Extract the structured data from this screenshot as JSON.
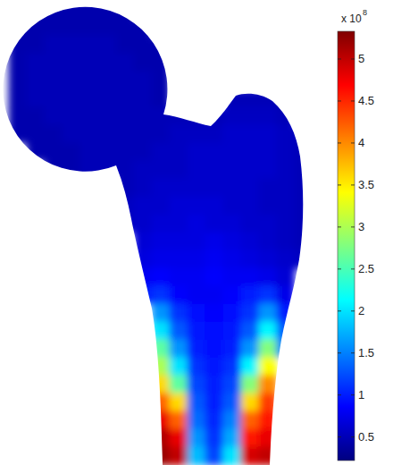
{
  "chart_data": {
    "type": "heatmap",
    "cells": [
      [
        null,
        0.45,
        0.45,
        0.45,
        0.45,
        0.45,
        0.45,
        null,
        null,
        null,
        null,
        null,
        null,
        null,
        null,
        null,
        null
      ],
      [
        0.45,
        0.45,
        0.45,
        0.45,
        0.45,
        0.45,
        0.45,
        0.45,
        null,
        null,
        null,
        null,
        null,
        null,
        null,
        null,
        null
      ],
      [
        0.45,
        0.45,
        0.5,
        0.5,
        0.5,
        0.5,
        0.45,
        0.45,
        0.45,
        null,
        null,
        null,
        null,
        null,
        null,
        null,
        null
      ],
      [
        0.45,
        0.5,
        0.5,
        0.5,
        0.5,
        0.5,
        0.5,
        0.45,
        0.45,
        null,
        null,
        null,
        null,
        null,
        null,
        null,
        null
      ],
      [
        0.45,
        0.5,
        0.5,
        0.5,
        0.5,
        0.5,
        0.5,
        0.5,
        0.45,
        null,
        null,
        null,
        null,
        null,
        null,
        null,
        null
      ],
      [
        0.45,
        0.5,
        0.5,
        0.5,
        0.5,
        0.5,
        0.5,
        0.5,
        0.45,
        null,
        null,
        null,
        0.5,
        0.5,
        0.5,
        0.45,
        null
      ],
      [
        0.45,
        0.45,
        0.5,
        0.5,
        0.5,
        0.5,
        0.5,
        0.5,
        0.5,
        0.5,
        0.5,
        0.5,
        0.55,
        0.55,
        0.55,
        0.5,
        null
      ],
      [
        0.45,
        0.45,
        0.45,
        0.5,
        0.5,
        0.5,
        0.5,
        0.5,
        0.5,
        0.55,
        0.55,
        0.55,
        0.6,
        0.6,
        0.6,
        0.55,
        0.5
      ],
      [
        null,
        0.45,
        0.45,
        0.45,
        0.5,
        0.5,
        0.5,
        0.5,
        0.55,
        0.55,
        0.6,
        0.6,
        0.6,
        0.6,
        0.6,
        0.55,
        0.5
      ],
      [
        null,
        null,
        0.45,
        0.45,
        0.5,
        0.5,
        0.5,
        0.55,
        0.55,
        0.55,
        0.6,
        0.6,
        0.6,
        0.6,
        0.6,
        0.55,
        0.5
      ],
      [
        null,
        null,
        null,
        null,
        null,
        null,
        0.5,
        0.55,
        0.6,
        0.6,
        0.6,
        0.6,
        0.6,
        0.6,
        0.55,
        0.55,
        0.5
      ],
      [
        null,
        null,
        null,
        null,
        null,
        null,
        0.55,
        0.6,
        0.6,
        0.65,
        0.65,
        0.65,
        0.6,
        0.6,
        0.55,
        0.55,
        0.5
      ],
      [
        null,
        null,
        null,
        null,
        null,
        null,
        0.55,
        0.6,
        0.65,
        0.65,
        0.7,
        0.65,
        0.65,
        0.6,
        0.6,
        0.55,
        0.5
      ],
      [
        null,
        null,
        null,
        null,
        null,
        null,
        null,
        0.65,
        0.7,
        0.7,
        0.7,
        0.75,
        0.7,
        0.65,
        0.6,
        0.55,
        0.5
      ],
      [
        null,
        null,
        null,
        null,
        null,
        null,
        null,
        0.7,
        0.75,
        0.75,
        0.75,
        0.8,
        0.75,
        0.7,
        0.65,
        0.6,
        0.55
      ],
      [
        null,
        null,
        null,
        null,
        null,
        null,
        null,
        0.8,
        0.85,
        0.8,
        0.8,
        0.85,
        0.8,
        0.8,
        0.75,
        0.65,
        null
      ],
      [
        null,
        null,
        null,
        null,
        null,
        null,
        null,
        1.0,
        1.1,
        0.85,
        0.8,
        0.8,
        0.85,
        1.0,
        1.1,
        0.75,
        null
      ],
      [
        null,
        null,
        null,
        null,
        null,
        null,
        null,
        null,
        1.6,
        1.1,
        0.9,
        0.85,
        0.9,
        1.1,
        1.6,
        1.0,
        null
      ],
      [
        null,
        null,
        null,
        null,
        null,
        null,
        null,
        null,
        2.0,
        1.3,
        0.95,
        0.9,
        0.95,
        1.3,
        2.1,
        1.3,
        null
      ],
      [
        null,
        null,
        null,
        null,
        null,
        null,
        null,
        null,
        2.6,
        1.6,
        1.0,
        0.9,
        1.0,
        1.6,
        2.8,
        1.5,
        null
      ],
      [
        null,
        null,
        null,
        null,
        null,
        null,
        null,
        null,
        3.0,
        2.0,
        1.1,
        0.95,
        1.1,
        2.1,
        3.4,
        null,
        null
      ],
      [
        null,
        null,
        null,
        null,
        null,
        null,
        null,
        null,
        3.6,
        2.6,
        1.2,
        1.0,
        1.2,
        2.8,
        4.0,
        null,
        null
      ],
      [
        null,
        null,
        null,
        null,
        null,
        null,
        null,
        null,
        4.2,
        3.6,
        1.3,
        1.0,
        1.3,
        3.6,
        4.4,
        null,
        null
      ],
      [
        null,
        null,
        null,
        null,
        null,
        null,
        null,
        null,
        4.8,
        4.2,
        1.4,
        1.05,
        1.5,
        4.2,
        4.6,
        null,
        null
      ],
      [
        null,
        null,
        null,
        null,
        null,
        null,
        null,
        null,
        5.1,
        4.8,
        1.6,
        1.1,
        1.7,
        4.6,
        4.8,
        null,
        null
      ],
      [
        null,
        null,
        null,
        null,
        null,
        null,
        null,
        null,
        5.2,
        5.0,
        1.8,
        1.2,
        2.0,
        4.9,
        5.0,
        null,
        null
      ]
    ],
    "colorbar": {
      "range": [
        0.22,
        5.33
      ],
      "ticks": [
        0.5,
        1,
        1.5,
        2,
        2.5,
        3,
        3.5,
        4,
        4.5,
        5
      ],
      "multiplier": "x 10",
      "exponent": "8"
    }
  }
}
